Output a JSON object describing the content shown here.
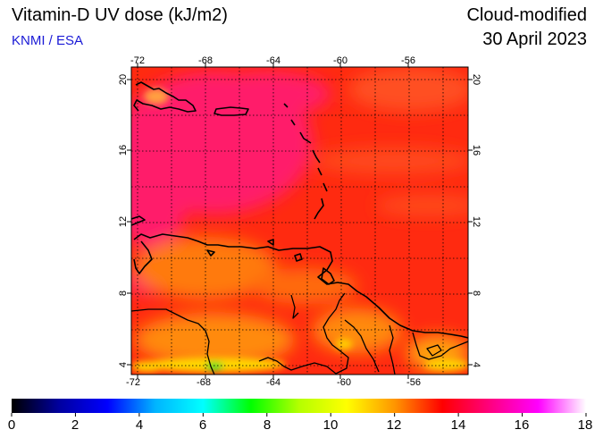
{
  "header": {
    "title": "Vitamin-D UV dose (kJ/m2)",
    "organization": "KNMI / ESA",
    "product": "Cloud-modified",
    "date": "30 April 2023"
  },
  "map": {
    "lon_ticks": [
      "-72",
      "-68",
      "-64",
      "-60",
      "-56"
    ],
    "lat_ticks": [
      "20",
      "16",
      "12",
      "8",
      "4"
    ]
  },
  "colorbar": {
    "labels": [
      "0",
      "2",
      "4",
      "6",
      "8",
      "10",
      "12",
      "14",
      "16",
      "18"
    ],
    "stops": [
      "#000000",
      "#0000a0",
      "#0000ff",
      "#00b4ff",
      "#00ffff",
      "#00ff00",
      "#b4ff00",
      "#ffff00",
      "#ff9600",
      "#ff0000",
      "#ff0080",
      "#ff00ff",
      "#ffffff"
    ]
  },
  "colors": {
    "field_base": "#ff2a10",
    "field_magenta": "#ff1a6a",
    "field_orange": "#ff7a10",
    "field_yellow": "#ffd800",
    "field_green": "#40e020",
    "coast": "#000000"
  }
}
